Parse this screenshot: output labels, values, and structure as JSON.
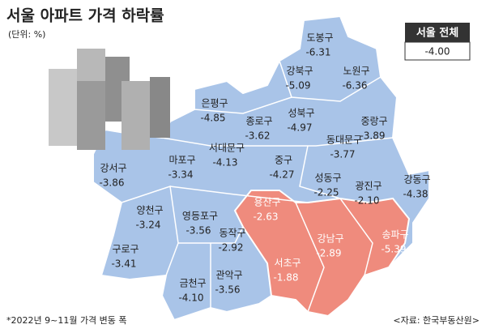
{
  "header": {
    "title": "서울 아파트 가격 하락률",
    "unit": "(단위: %)"
  },
  "summary": {
    "label": "서울 전체",
    "value": "-4.00"
  },
  "districts": [
    {
      "name": "도봉구",
      "value": "-6.31",
      "highlighted": false
    },
    {
      "name": "강북구",
      "value": "-5.09",
      "highlighted": false
    },
    {
      "name": "노원구",
      "value": "-6.36",
      "highlighted": false
    },
    {
      "name": "은평구",
      "value": "-4.85",
      "highlighted": false
    },
    {
      "name": "종로구",
      "value": "-3.62",
      "highlighted": false
    },
    {
      "name": "성북구",
      "value": "-4.97",
      "highlighted": false
    },
    {
      "name": "중랑구",
      "value": "-3.89",
      "highlighted": false
    },
    {
      "name": "동대문구",
      "value": "-3.77",
      "highlighted": false
    },
    {
      "name": "강서구",
      "value": "-3.86",
      "highlighted": false
    },
    {
      "name": "마포구",
      "value": "-3.34",
      "highlighted": false
    },
    {
      "name": "서대문구",
      "value": "-4.13",
      "highlighted": false
    },
    {
      "name": "중구",
      "value": "-4.27",
      "highlighted": false
    },
    {
      "name": "성동구",
      "value": "-2.25",
      "highlighted": false
    },
    {
      "name": "광진구",
      "value": "-2.10",
      "highlighted": false
    },
    {
      "name": "강동구",
      "value": "-4.38",
      "highlighted": false
    },
    {
      "name": "용산구",
      "value": "-2.63",
      "highlighted": true
    },
    {
      "name": "양천구",
      "value": "-3.24",
      "highlighted": false
    },
    {
      "name": "영등포구",
      "value": "-3.56",
      "highlighted": false
    },
    {
      "name": "동작구",
      "value": "-2.92",
      "highlighted": false
    },
    {
      "name": "강남구",
      "value": "-2.89",
      "highlighted": true
    },
    {
      "name": "송파구",
      "value": "-5.39",
      "highlighted": true
    },
    {
      "name": "구로구",
      "value": "-3.41",
      "highlighted": false
    },
    {
      "name": "서초구",
      "value": "-1.88",
      "highlighted": true
    },
    {
      "name": "금천구",
      "value": "-4.10",
      "highlighted": false
    },
    {
      "name": "관악구",
      "value": "-3.56",
      "highlighted": false
    }
  ],
  "footer": {
    "note": "*2022년 9~11월 가격 변동 폭",
    "source": "<자료: 한국부동산원>"
  }
}
